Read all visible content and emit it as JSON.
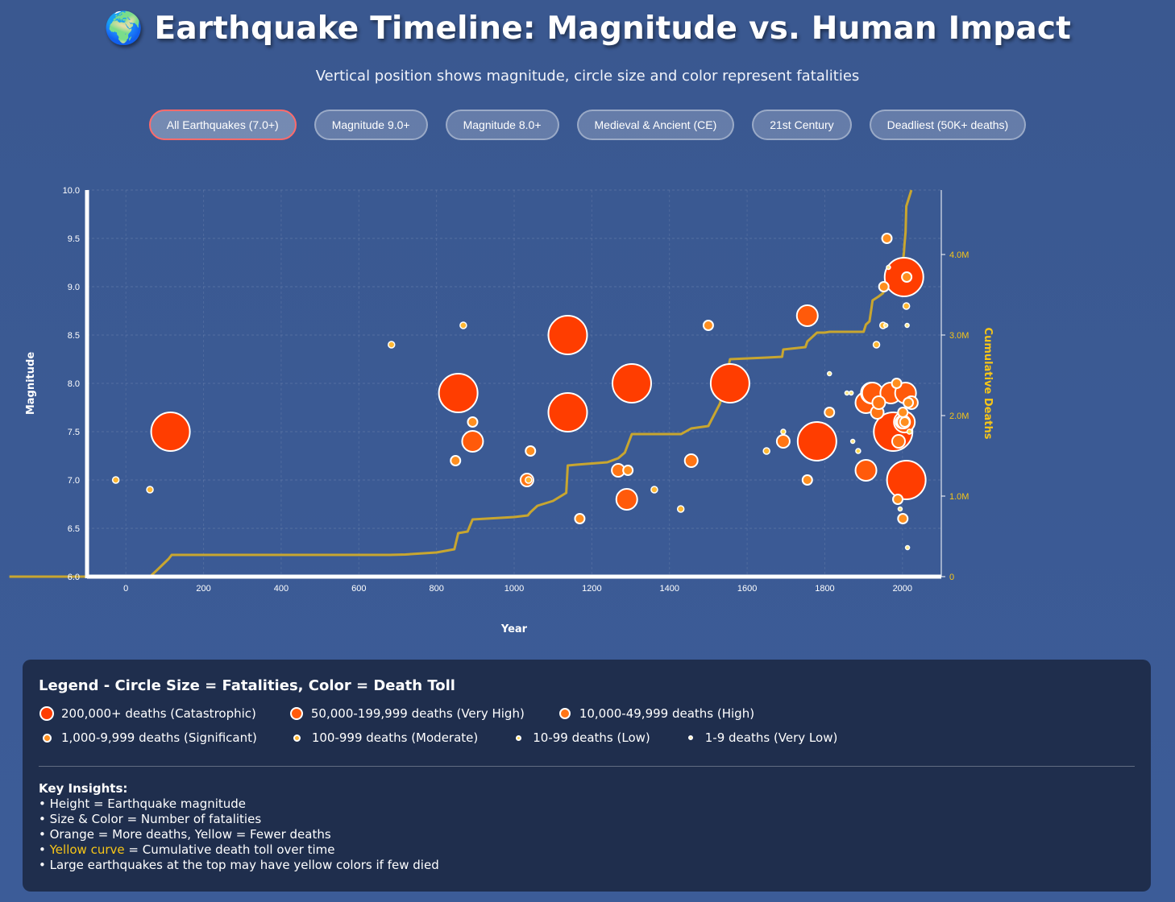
{
  "header": {
    "globe": "🌍",
    "title": "Earthquake Timeline: Magnitude vs. Human Impact",
    "subtitle": "Vertical position shows magnitude, circle size and color represent fatalities"
  },
  "filters": [
    {
      "label": "All Earthquakes (7.0+)",
      "active": true
    },
    {
      "label": "Magnitude 9.0+",
      "active": false
    },
    {
      "label": "Magnitude 8.0+",
      "active": false
    },
    {
      "label": "Medieval & Ancient (CE)",
      "active": false
    },
    {
      "label": "21st Century",
      "active": false
    },
    {
      "label": "Deadliest (50K+ deaths)",
      "active": false
    }
  ],
  "colors": {
    "catastrophic": "#ff3d00",
    "very_high": "#ff5a0a",
    "high": "#ff7514",
    "significant": "#ff8f1f",
    "moderate": "#ffb733",
    "low": "#ffd84d",
    "very_low": "#ffe680",
    "cumulative": "#c8a630",
    "axis_right": "#f6c518"
  },
  "chart_data": {
    "type": "scatter",
    "xlabel": "Year",
    "ylabel": "Magnitude",
    "y2label": "Cumulative Deaths",
    "xlim": [
      -100,
      2100
    ],
    "ylim": [
      6.0,
      10.0
    ],
    "y2lim": [
      0,
      4800000
    ],
    "xticks": [
      "0",
      "200",
      "400",
      "600",
      "800",
      "1000",
      "1200",
      "1400",
      "1600",
      "1800",
      "2000"
    ],
    "yticks": [
      "6.0",
      "6.5",
      "7.0",
      "7.5",
      "8.0",
      "8.5",
      "9.0",
      "9.5",
      "10.0"
    ],
    "y2ticks": [
      "0",
      "1.0M",
      "2.0M",
      "3.0M",
      "4.0M"
    ],
    "grid": true,
    "points": [
      {
        "year": -26,
        "mag": 7.0,
        "cls": "moderate"
      },
      {
        "year": 62,
        "mag": 6.9,
        "cls": "moderate"
      },
      {
        "year": 115,
        "mag": 7.5,
        "cls": "catastrophic"
      },
      {
        "year": 684,
        "mag": 8.4,
        "cls": "moderate"
      },
      {
        "year": 849,
        "mag": 7.2,
        "cls": "significant"
      },
      {
        "year": 856,
        "mag": 7.9,
        "cls": "catastrophic"
      },
      {
        "year": 869,
        "mag": 8.6,
        "cls": "moderate"
      },
      {
        "year": 893,
        "mag": 7.6,
        "cls": "significant"
      },
      {
        "year": 893,
        "mag": 7.4,
        "cls": "very_high"
      },
      {
        "year": 1033,
        "mag": 7.0,
        "cls": "high"
      },
      {
        "year": 1037,
        "mag": 7.0,
        "cls": "moderate"
      },
      {
        "year": 1042,
        "mag": 7.3,
        "cls": "significant"
      },
      {
        "year": 1138,
        "mag": 8.5,
        "cls": "catastrophic"
      },
      {
        "year": 1138,
        "mag": 7.7,
        "cls": "catastrophic"
      },
      {
        "year": 1169,
        "mag": 6.6,
        "cls": "significant"
      },
      {
        "year": 1268,
        "mag": 7.1,
        "cls": "high"
      },
      {
        "year": 1290,
        "mag": 6.8,
        "cls": "very_high"
      },
      {
        "year": 1293,
        "mag": 7.1,
        "cls": "significant"
      },
      {
        "year": 1303,
        "mag": 8.0,
        "cls": "catastrophic"
      },
      {
        "year": 1361,
        "mag": 6.9,
        "cls": "moderate"
      },
      {
        "year": 1429,
        "mag": 6.7,
        "cls": "moderate"
      },
      {
        "year": 1456,
        "mag": 7.2,
        "cls": "high"
      },
      {
        "year": 1500,
        "mag": 8.6,
        "cls": "significant"
      },
      {
        "year": 1556,
        "mag": 8.0,
        "cls": "catastrophic"
      },
      {
        "year": 1650,
        "mag": 7.3,
        "cls": "moderate"
      },
      {
        "year": 1693,
        "mag": 7.4,
        "cls": "high"
      },
      {
        "year": 1693,
        "mag": 7.5,
        "cls": "low"
      },
      {
        "year": 1755,
        "mag": 8.7,
        "cls": "very_high"
      },
      {
        "year": 1755,
        "mag": 7.0,
        "cls": "significant"
      },
      {
        "year": 1780,
        "mag": 7.4,
        "cls": "catastrophic"
      },
      {
        "year": 1812,
        "mag": 8.1,
        "cls": "very_low"
      },
      {
        "year": 1812,
        "mag": 7.7,
        "cls": "significant"
      },
      {
        "year": 1857,
        "mag": 7.9,
        "cls": "very_low"
      },
      {
        "year": 1868,
        "mag": 7.9,
        "cls": "very_low"
      },
      {
        "year": 1872,
        "mag": 7.4,
        "cls": "very_low"
      },
      {
        "year": 1886,
        "mag": 7.3,
        "cls": "low"
      },
      {
        "year": 1906,
        "mag": 7.1,
        "cls": "very_high"
      },
      {
        "year": 1906,
        "mag": 7.8,
        "cls": "very_high"
      },
      {
        "year": 1920,
        "mag": 7.9,
        "cls": "very_high"
      },
      {
        "year": 1923,
        "mag": 7.9,
        "cls": "very_high"
      },
      {
        "year": 1933,
        "mag": 8.4,
        "cls": "moderate"
      },
      {
        "year": 1935,
        "mag": 7.7,
        "cls": "high"
      },
      {
        "year": 1939,
        "mag": 7.8,
        "cls": "high"
      },
      {
        "year": 1950,
        "mag": 8.6,
        "cls": "moderate"
      },
      {
        "year": 1952,
        "mag": 9.0,
        "cls": "significant"
      },
      {
        "year": 1957,
        "mag": 8.6,
        "cls": "very_low"
      },
      {
        "year": 1960,
        "mag": 9.5,
        "cls": "significant"
      },
      {
        "year": 1964,
        "mag": 9.2,
        "cls": "very_low"
      },
      {
        "year": 1970,
        "mag": 7.9,
        "cls": "very_high"
      },
      {
        "year": 1976,
        "mag": 7.5,
        "cls": "catastrophic"
      },
      {
        "year": 1985,
        "mag": 8.0,
        "cls": "significant"
      },
      {
        "year": 1988,
        "mag": 6.8,
        "cls": "significant"
      },
      {
        "year": 1990,
        "mag": 7.4,
        "cls": "high"
      },
      {
        "year": 1994,
        "mag": 6.7,
        "cls": "very_low"
      },
      {
        "year": 1999,
        "mag": 7.6,
        "cls": "high"
      },
      {
        "year": 2001,
        "mag": 7.7,
        "cls": "significant"
      },
      {
        "year": 2001,
        "mag": 6.6,
        "cls": "significant"
      },
      {
        "year": 2003,
        "mag": 7.6,
        "cls": "high"
      },
      {
        "year": 2004,
        "mag": 9.1,
        "cls": "catastrophic"
      },
      {
        "year": 2005,
        "mag": 7.6,
        "cls": "very_high"
      },
      {
        "year": 2006,
        "mag": 7.6,
        "cls": "significant"
      },
      {
        "year": 2008,
        "mag": 7.9,
        "cls": "very_high"
      },
      {
        "year": 2010,
        "mag": 7.0,
        "cls": "catastrophic"
      },
      {
        "year": 2010,
        "mag": 8.8,
        "cls": "moderate"
      },
      {
        "year": 2011,
        "mag": 9.1,
        "cls": "significant"
      },
      {
        "year": 2012,
        "mag": 8.6,
        "cls": "very_low"
      },
      {
        "year": 2013,
        "mag": 6.3,
        "cls": "very_low"
      },
      {
        "year": 2015,
        "mag": 7.8,
        "cls": "significant"
      },
      {
        "year": 2018,
        "mag": 7.5,
        "cls": "low"
      },
      {
        "year": 2023,
        "mag": 7.8,
        "cls": "high"
      }
    ],
    "cumulative": [
      [
        -300,
        0
      ],
      [
        62,
        0
      ],
      [
        80,
        80000
      ],
      [
        110,
        220000
      ],
      [
        118,
        270000
      ],
      [
        680,
        270000
      ],
      [
        720,
        275000
      ],
      [
        800,
        300000
      ],
      [
        846,
        340000
      ],
      [
        856,
        540000
      ],
      [
        880,
        560000
      ],
      [
        893,
        710000
      ],
      [
        1000,
        740000
      ],
      [
        1035,
        760000
      ],
      [
        1042,
        800000
      ],
      [
        1060,
        880000
      ],
      [
        1100,
        940000
      ],
      [
        1134,
        1040000
      ],
      [
        1138,
        1380000
      ],
      [
        1160,
        1390000
      ],
      [
        1240,
        1420000
      ],
      [
        1268,
        1470000
      ],
      [
        1285,
        1540000
      ],
      [
        1303,
        1770000
      ],
      [
        1430,
        1770000
      ],
      [
        1456,
        1840000
      ],
      [
        1500,
        1870000
      ],
      [
        1530,
        2150000
      ],
      [
        1556,
        2700000
      ],
      [
        1650,
        2720000
      ],
      [
        1690,
        2730000
      ],
      [
        1693,
        2820000
      ],
      [
        1750,
        2850000
      ],
      [
        1755,
        2920000
      ],
      [
        1780,
        3030000
      ],
      [
        1800,
        3030000
      ],
      [
        1812,
        3040000
      ],
      [
        1900,
        3040000
      ],
      [
        1906,
        3130000
      ],
      [
        1915,
        3170000
      ],
      [
        1920,
        3330000
      ],
      [
        1923,
        3430000
      ],
      [
        1939,
        3480000
      ],
      [
        1950,
        3520000
      ],
      [
        1976,
        3800000
      ],
      [
        2000,
        3850000
      ],
      [
        2004,
        4030000
      ],
      [
        2005,
        4110000
      ],
      [
        2008,
        4280000
      ],
      [
        2010,
        4600000
      ],
      [
        2023,
        4850000
      ]
    ]
  },
  "legend": {
    "title": "Legend - Circle Size = Fatalities, Color = Death Toll",
    "items": [
      {
        "label": "200,000+ deaths (Catastrophic)",
        "cls": "catastrophic"
      },
      {
        "label": "50,000-199,999 deaths (Very High)",
        "cls": "very_high"
      },
      {
        "label": "10,000-49,999 deaths (High)",
        "cls": "high"
      },
      {
        "label": "1,000-9,999 deaths (Significant)",
        "cls": "significant"
      },
      {
        "label": "100-999 deaths (Moderate)",
        "cls": "moderate"
      },
      {
        "label": "10-99 deaths (Low)",
        "cls": "low"
      },
      {
        "label": "1-9 deaths (Very Low)",
        "cls": "very_low"
      }
    ]
  },
  "insights": {
    "title": "Key Insights:",
    "line1": "• Height = Earthquake magnitude",
    "line2": "• Size & Color = Number of fatalities",
    "line3": "• Orange = More deaths, Yellow = Fewer deaths",
    "line4_bullet": "• ",
    "line4_highlight": "Yellow curve",
    "line4_rest": " = Cumulative death toll over time",
    "line5": "• Large earthquakes at the top may have yellow colors if few died"
  }
}
